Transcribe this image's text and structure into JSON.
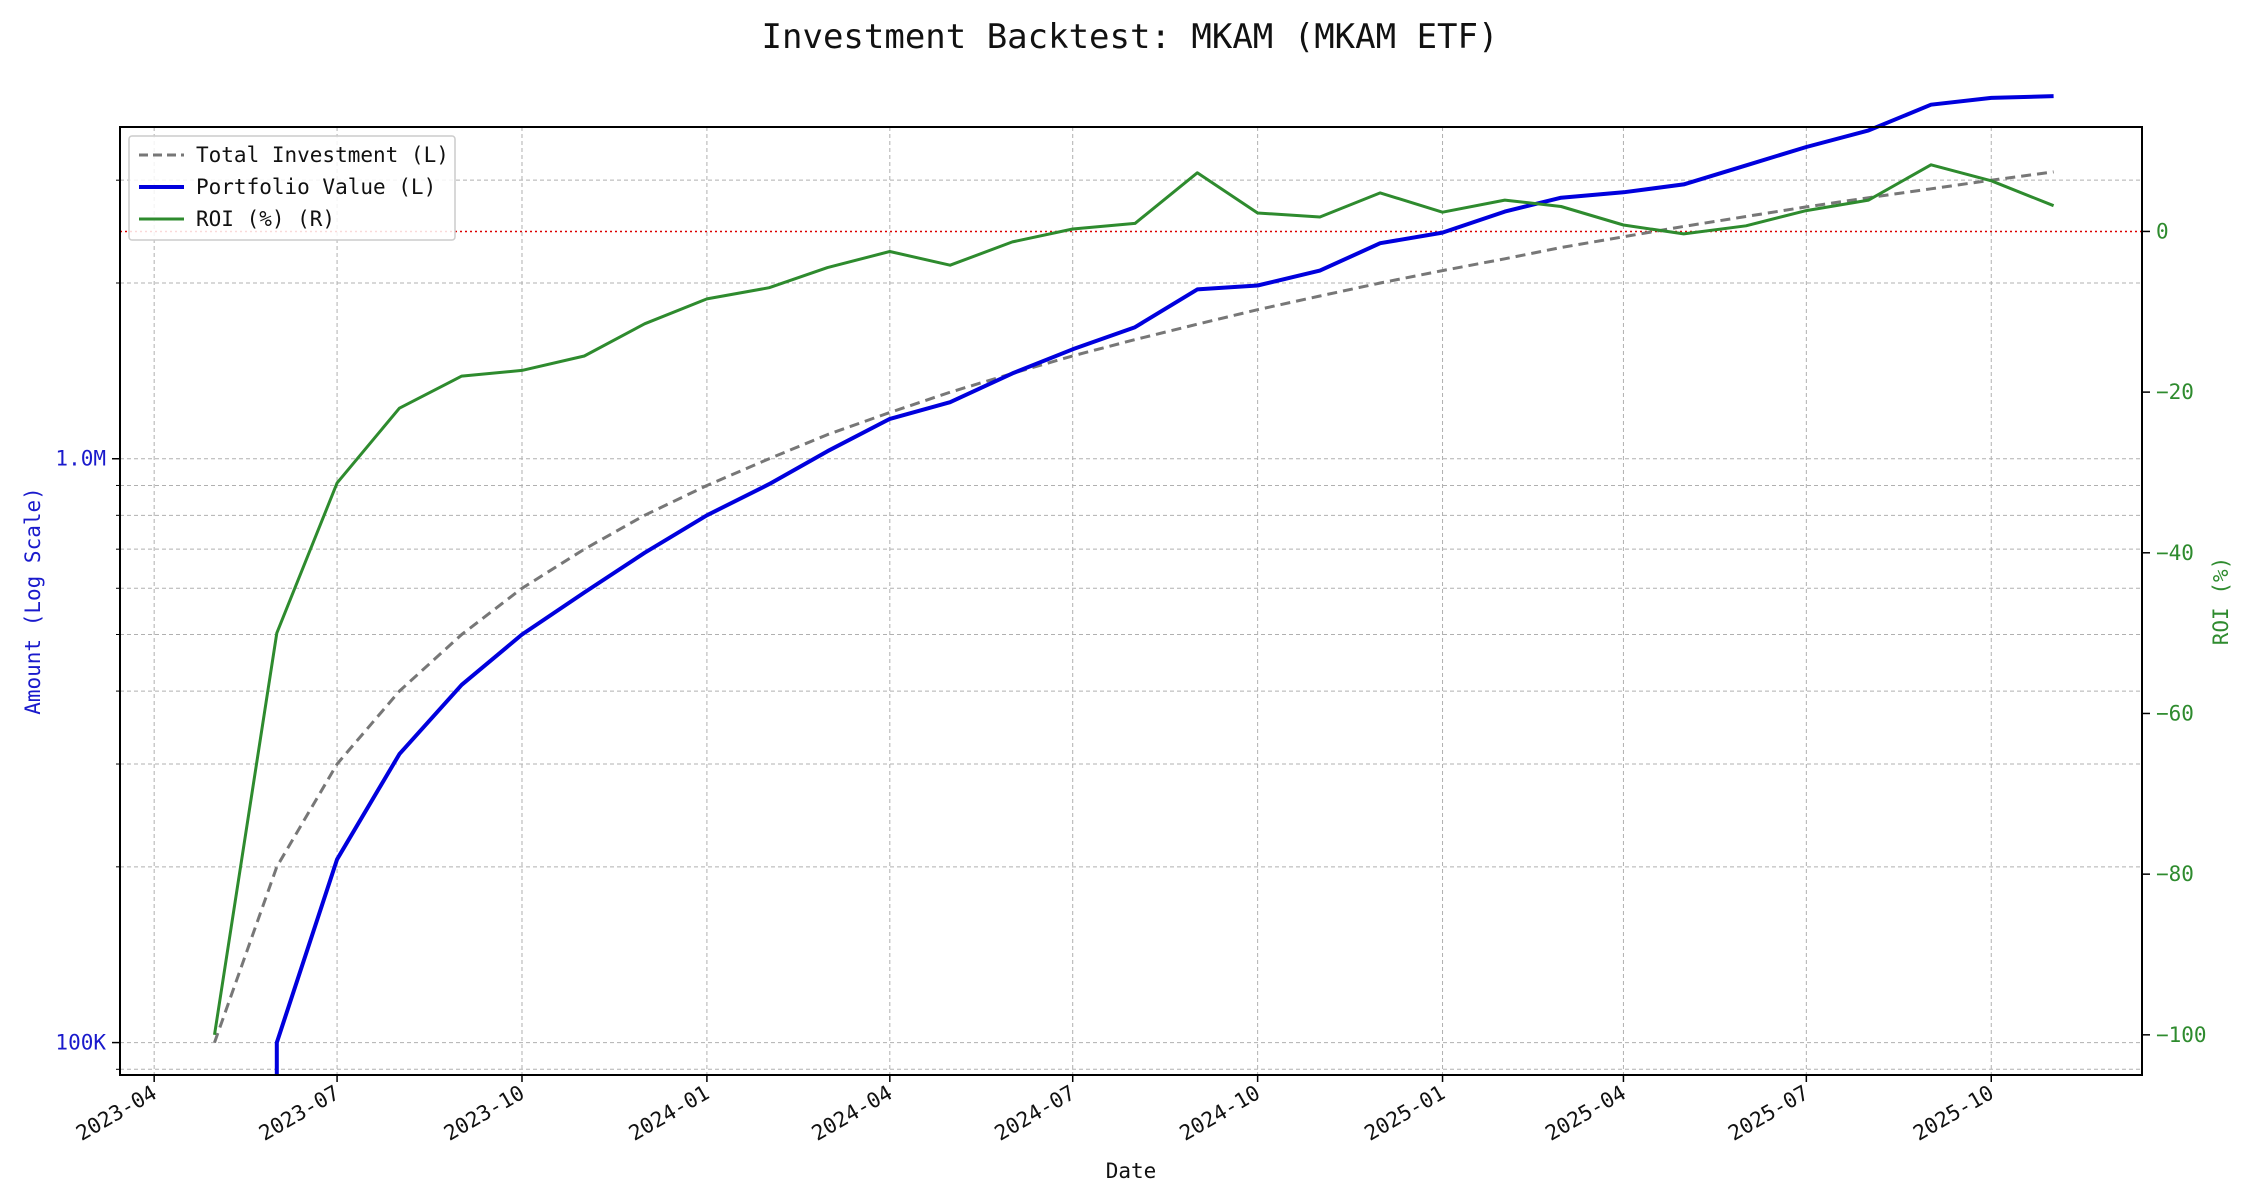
{
  "chart_data": {
    "type": "line",
    "title": "Investment Backtest: MKAM (MKAM ETF)",
    "xlabel": "Date",
    "ylabel_left": "Amount (Log Scale)",
    "ylabel_right": "ROI (%)",
    "left_axis": {
      "scale": "log",
      "range": [
        88000,
        3700000
      ],
      "ticks": [
        100000,
        1000000
      ],
      "tick_labels": [
        "100K",
        "1.0M"
      ]
    },
    "right_axis": {
      "scale": "linear",
      "range": [
        -105,
        13
      ],
      "ticks": [
        -100,
        -80,
        -60,
        -40,
        -20,
        0
      ],
      "tick_labels": [
        "−100",
        "−80",
        "−60",
        "−40",
        "−20",
        "0"
      ]
    },
    "x_range": [
      "2023-03-15",
      "2025-12-15"
    ],
    "x_ticks": [
      "2023-04-01",
      "2023-07-01",
      "2023-10-01",
      "2024-01-01",
      "2024-04-01",
      "2024-07-01",
      "2024-10-01",
      "2025-01-01",
      "2025-04-01",
      "2025-07-01",
      "2025-10-01"
    ],
    "x_tick_labels": [
      "2023-04",
      "2023-07",
      "2023-10",
      "2024-01",
      "2024-04",
      "2024-07",
      "2024-10",
      "2025-01",
      "2025-04",
      "2025-07",
      "2025-10"
    ],
    "dates": [
      "2023-05-01",
      "2023-06-01",
      "2023-07-01",
      "2023-08-01",
      "2023-09-01",
      "2023-10-01",
      "2023-11-01",
      "2023-12-01",
      "2024-01-01",
      "2024-02-01",
      "2024-03-01",
      "2024-04-01",
      "2024-05-01",
      "2024-06-01",
      "2024-07-01",
      "2024-08-01",
      "2024-09-01",
      "2024-10-01",
      "2024-11-01",
      "2024-12-01",
      "2025-01-01",
      "2025-02-01",
      "2025-03-01",
      "2025-04-01",
      "2025-05-01",
      "2025-06-01",
      "2025-07-01",
      "2025-08-01",
      "2025-09-01",
      "2025-10-01",
      "2025-11-01"
    ],
    "reference_line": {
      "axis": "right",
      "value": 0,
      "color": "#dd0000",
      "style": "dotted"
    },
    "grid": true,
    "legend_position": "top-left",
    "series": [
      {
        "name": "Total Investment (L)",
        "axis": "left",
        "color": "#777777",
        "style": "dashed",
        "values": [
          100000,
          200000,
          300000,
          400000,
          500000,
          600000,
          700000,
          800000,
          900000,
          1000000,
          1100000,
          1200000,
          1300000,
          1400000,
          1500000,
          1600000,
          1700000,
          1800000,
          1900000,
          2000000,
          2100000,
          2200000,
          2300000,
          2400000,
          2500000,
          2600000,
          2700000,
          2800000,
          2900000,
          3000000,
          3100000
        ]
      },
      {
        "name": "Portfolio Value (L)",
        "axis": "left",
        "color": "#0000dd",
        "style": "solid",
        "values": [
          null,
          100000,
          206000,
          312000,
          410000,
          500000,
          590000,
          690000,
          800000,
          905000,
          1030000,
          1170000,
          1250000,
          1400000,
          1540000,
          1680000,
          1950000,
          1980000,
          2100000,
          2340000,
          2440000,
          2650000,
          2800000,
          2860000,
          2950000,
          3180000,
          3420000,
          3650000,
          4040000,
          4150000,
          4180000
        ]
      },
      {
        "name": "ROI (%) (R)",
        "axis": "right",
        "color": "#2e8b2e",
        "style": "solid",
        "values": [
          -100,
          -50,
          -31.3,
          -22,
          -18,
          -17.3,
          -15.5,
          -11.5,
          -8.4,
          -7,
          -4.5,
          -2.5,
          -4.2,
          -1.3,
          0.3,
          1,
          7.3,
          2.3,
          1.8,
          4.8,
          2.4,
          3.9,
          3.1,
          0.8,
          -0.3,
          0.7,
          2.6,
          3.9,
          8.3,
          6.3,
          3.2
        ]
      }
    ]
  }
}
